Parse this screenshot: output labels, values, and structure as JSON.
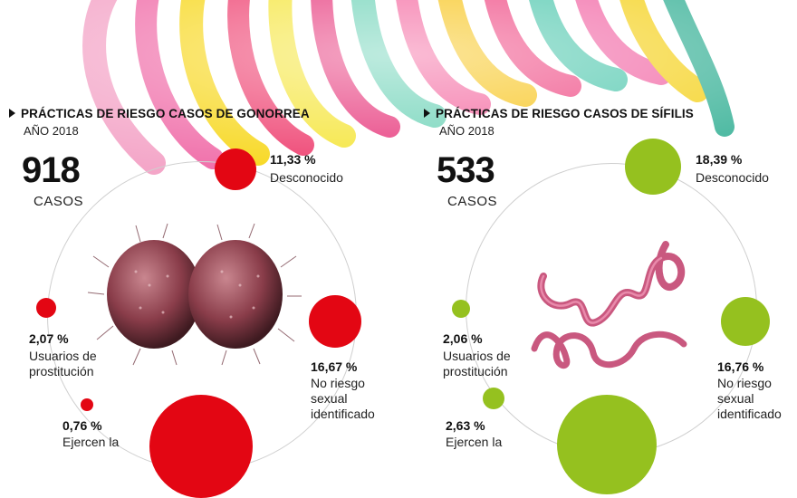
{
  "colors": {
    "gonorrea": "#e30613",
    "sifilis": "#95c11f",
    "ring": "#cfcfcf"
  },
  "gonorrea": {
    "heading": "PRÁCTICAS DE RIESGO CASOS DE GONORREA",
    "year": "AÑO 2018",
    "total": "918",
    "total_label": "CASOS",
    "items": [
      {
        "pct": "11,33 %",
        "label": "Desconocido"
      },
      {
        "pct": "16,67 %",
        "label": "No riesgo sexual identificado"
      },
      {
        "pct": "2,07 %",
        "label": "Usuarios de prostitución"
      },
      {
        "pct": "0,76 %",
        "label": "Ejercen la"
      }
    ]
  },
  "sifilis": {
    "heading": "PRÁCTICAS DE RIESGO CASOS DE SÍFILIS",
    "year": "AÑO 2018",
    "total": "533",
    "total_label": "CASOS",
    "items": [
      {
        "pct": "18,39 %",
        "label": "Desconocido"
      },
      {
        "pct": "16,76 %",
        "label": "No riesgo sexual identificado"
      },
      {
        "pct": "2,06 %",
        "label": "Usuarios de prostitución"
      },
      {
        "pct": "2,63 %",
        "label": "Ejercen la"
      }
    ]
  }
}
